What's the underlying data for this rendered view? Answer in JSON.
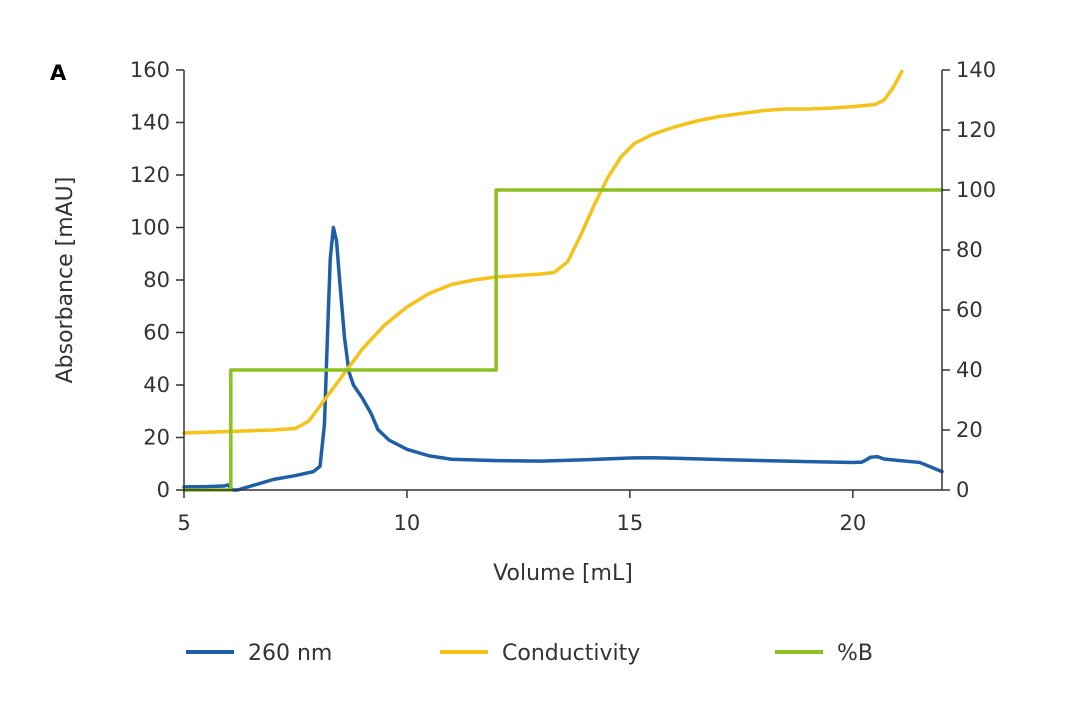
{
  "chart_data": {
    "type": "line",
    "panel_label": "A",
    "xlabel": "Volume [mL]",
    "ylabel": "Absorbance [mAU]",
    "y2label": "",
    "xlim": [
      5,
      22
    ],
    "ylim": [
      0,
      160
    ],
    "y2lim": [
      0,
      140
    ],
    "xticks": [
      5,
      10,
      15,
      20
    ],
    "yticks": [
      0,
      20,
      40,
      60,
      80,
      100,
      120,
      140,
      160
    ],
    "y2ticks": [
      0,
      20,
      40,
      60,
      80,
      100,
      120,
      140
    ],
    "grid": false,
    "legend_position": "bottom",
    "series": [
      {
        "name": "260 nm",
        "axis": "left",
        "color": "#1f5fa8",
        "points": [
          [
            5.0,
            1.2
          ],
          [
            5.5,
            1.3
          ],
          [
            5.9,
            1.5
          ],
          [
            6.0,
            2.0
          ],
          [
            6.05,
            0.5
          ],
          [
            6.1,
            0.0
          ],
          [
            6.2,
            0.0
          ],
          [
            6.5,
            1.5
          ],
          [
            7.0,
            4.0
          ],
          [
            7.5,
            5.5
          ],
          [
            7.9,
            7.0
          ],
          [
            8.05,
            9.0
          ],
          [
            8.15,
            25
          ],
          [
            8.22,
            60
          ],
          [
            8.28,
            88
          ],
          [
            8.35,
            100
          ],
          [
            8.42,
            95
          ],
          [
            8.5,
            78
          ],
          [
            8.6,
            58
          ],
          [
            8.7,
            45
          ],
          [
            8.8,
            40
          ],
          [
            9.0,
            35
          ],
          [
            9.2,
            29
          ],
          [
            9.35,
            23
          ],
          [
            9.6,
            19
          ],
          [
            10.0,
            15.5
          ],
          [
            10.5,
            13
          ],
          [
            11.0,
            11.7
          ],
          [
            12.0,
            11.2
          ],
          [
            13.0,
            11.0
          ],
          [
            14.0,
            11.5
          ],
          [
            15.0,
            12.2
          ],
          [
            15.5,
            12.3
          ],
          [
            16.0,
            12.1
          ],
          [
            17.0,
            11.6
          ],
          [
            18.0,
            11.2
          ],
          [
            19.0,
            10.8
          ],
          [
            20.0,
            10.5
          ],
          [
            20.2,
            10.6
          ],
          [
            20.3,
            11.5
          ],
          [
            20.4,
            12.5
          ],
          [
            20.55,
            12.7
          ],
          [
            20.7,
            11.8
          ],
          [
            21.0,
            11.3
          ],
          [
            21.5,
            10.5
          ],
          [
            22.0,
            7.0
          ]
        ]
      },
      {
        "name": "Conductivity",
        "axis": "right",
        "color": "#f5c21a",
        "points": [
          [
            5.0,
            19
          ],
          [
            6.0,
            19.5
          ],
          [
            7.0,
            20
          ],
          [
            7.5,
            20.5
          ],
          [
            7.8,
            23
          ],
          [
            8.0,
            27
          ],
          [
            8.3,
            33
          ],
          [
            8.6,
            39
          ],
          [
            9.0,
            47
          ],
          [
            9.5,
            55
          ],
          [
            10.0,
            61
          ],
          [
            10.5,
            65.5
          ],
          [
            11.0,
            68.5
          ],
          [
            11.5,
            70
          ],
          [
            12.0,
            71
          ],
          [
            12.5,
            71.5
          ],
          [
            13.0,
            72
          ],
          [
            13.3,
            72.5
          ],
          [
            13.6,
            76
          ],
          [
            13.9,
            85
          ],
          [
            14.2,
            95
          ],
          [
            14.5,
            104
          ],
          [
            14.8,
            111
          ],
          [
            15.1,
            115.5
          ],
          [
            15.5,
            118.5
          ],
          [
            16.0,
            121
          ],
          [
            16.5,
            123
          ],
          [
            17.0,
            124.5
          ],
          [
            17.5,
            125.5
          ],
          [
            18.0,
            126.5
          ],
          [
            18.5,
            127
          ],
          [
            19.0,
            127
          ],
          [
            19.5,
            127.3
          ],
          [
            20.0,
            127.8
          ],
          [
            20.5,
            128.5
          ],
          [
            20.7,
            130
          ],
          [
            20.9,
            134
          ],
          [
            21.1,
            139.5
          ]
        ]
      },
      {
        "name": "%B",
        "axis": "right",
        "color": "#8dc021",
        "points": [
          [
            5.0,
            0
          ],
          [
            6.05,
            0
          ],
          [
            6.05,
            40
          ],
          [
            12.0,
            40
          ],
          [
            12.0,
            100
          ],
          [
            22.0,
            100
          ]
        ]
      }
    ]
  }
}
